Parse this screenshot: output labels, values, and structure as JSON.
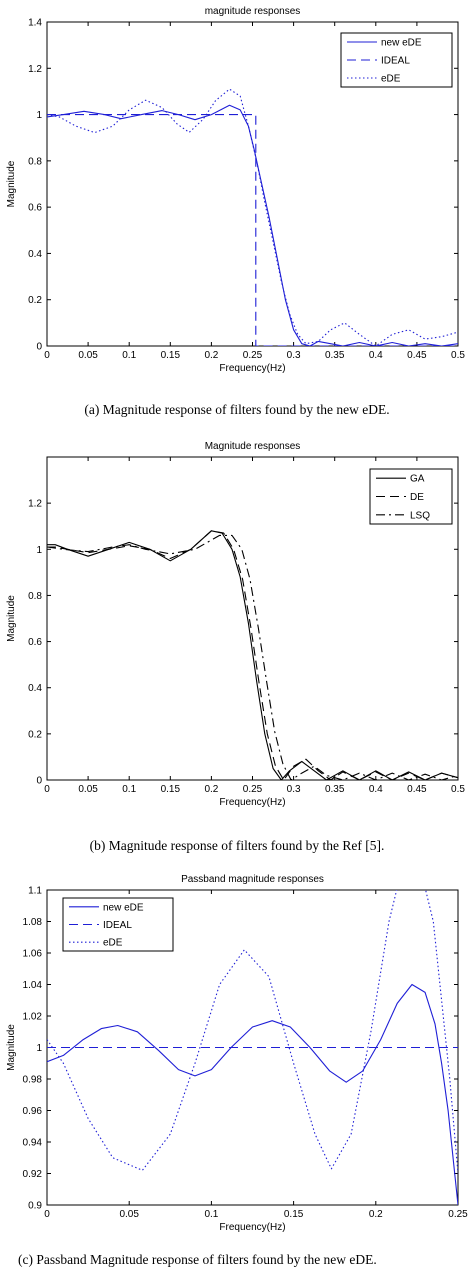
{
  "captions": {
    "a": "(a) Magnitude response of filters found by the new eDE.",
    "b": "(b) Magnitude response of filters found by the Ref [5].",
    "c": "(c) Passband Magnitude response of filters found by the new eDE."
  },
  "chart_data": [
    {
      "type": "line",
      "title": "magnitude responses",
      "xlabel": "Frequency(Hz)",
      "ylabel": "Magnitude",
      "xlim": [
        0,
        0.5
      ],
      "ylim": [
        0,
        1.4
      ],
      "xticks": [
        0,
        0.05,
        0.1,
        0.15,
        0.2,
        0.25,
        0.3,
        0.35,
        0.4,
        0.45,
        0.5
      ],
      "xtick_labels": [
        "0",
        "0.05",
        "0.1",
        "0.15",
        "0.2",
        "0.25",
        "0.3",
        "0.35",
        "0.4",
        "0.45",
        "0.5"
      ],
      "yticks": [
        0,
        0.2,
        0.4,
        0.6,
        0.8,
        1,
        1.2,
        1.4
      ],
      "ytick_labels": [
        "0",
        "0.2",
        "0.4",
        "0.6",
        "0.8",
        "1",
        "1.2",
        "1.4"
      ],
      "grid": false,
      "legend": "top-right",
      "series": [
        {
          "name": "new eDE",
          "style": "solid",
          "color": "#1f1fd6",
          "x": [
            0,
            0.02,
            0.045,
            0.07,
            0.09,
            0.115,
            0.14,
            0.16,
            0.18,
            0.2,
            0.222,
            0.235,
            0.245,
            0.252,
            0.26,
            0.27,
            0.28,
            0.29,
            0.3,
            0.31,
            0.32,
            0.33,
            0.345,
            0.36,
            0.38,
            0.4,
            0.42,
            0.44,
            0.46,
            0.48,
            0.5
          ],
          "y": [
            0.99,
            1.0,
            1.014,
            1.0,
            0.982,
            1.0,
            1.017,
            1.0,
            0.978,
            1.0,
            1.04,
            1.02,
            0.95,
            0.85,
            0.72,
            0.56,
            0.38,
            0.2,
            0.07,
            0.01,
            0.0,
            0.02,
            0.01,
            0.0,
            0.015,
            0.0,
            0.015,
            0.0,
            0.01,
            0.0,
            0.01
          ]
        },
        {
          "name": "IDEAL",
          "style": "dashed",
          "color": "#1f1fd6",
          "x": [
            0,
            0.254,
            0.254,
            0.5
          ],
          "y": [
            1.0,
            1.0,
            0.0,
            0.0
          ]
        },
        {
          "name": "eDE",
          "style": "dotted",
          "color": "#1f1fd6",
          "x": [
            0,
            0.015,
            0.035,
            0.058,
            0.08,
            0.1,
            0.12,
            0.14,
            0.158,
            0.173,
            0.19,
            0.205,
            0.222,
            0.235,
            0.245,
            0.255,
            0.265,
            0.275,
            0.285,
            0.295,
            0.305,
            0.315,
            0.33,
            0.345,
            0.362,
            0.38,
            0.4,
            0.42,
            0.44,
            0.46,
            0.48,
            0.5
          ],
          "y": [
            1.0,
            0.99,
            0.95,
            0.922,
            0.95,
            1.02,
            1.062,
            1.03,
            0.96,
            0.923,
            0.98,
            1.06,
            1.11,
            1.08,
            0.95,
            0.8,
            0.62,
            0.45,
            0.28,
            0.14,
            0.05,
            0.01,
            0.02,
            0.07,
            0.1,
            0.05,
            0.0,
            0.05,
            0.07,
            0.03,
            0.04,
            0.06
          ]
        }
      ]
    },
    {
      "type": "line",
      "title": "Magnitude responses",
      "xlabel": "Frequency(Hz)",
      "ylabel": "Magnitude",
      "xlim": [
        0,
        0.5
      ],
      "ylim": [
        0,
        1.4
      ],
      "xticks": [
        0,
        0.05,
        0.1,
        0.15,
        0.2,
        0.25,
        0.3,
        0.35,
        0.4,
        0.45,
        0.5
      ],
      "xtick_labels": [
        "0",
        "0.05",
        "0.1",
        "0.15",
        "0.2",
        "0.25",
        "0.3",
        "0.35",
        "0.4",
        "0.45",
        "0.5"
      ],
      "yticks": [
        0,
        0.2,
        0.4,
        0.6,
        0.8,
        1,
        1.2
      ],
      "ytick_labels": [
        "0",
        "0.2",
        "0.4",
        "0.6",
        "0.8",
        "1",
        "1.2"
      ],
      "grid": false,
      "legend": "top-right",
      "series": [
        {
          "name": "GA",
          "style": "solid",
          "color": "#000000",
          "x": [
            0,
            0.01,
            0.025,
            0.05,
            0.075,
            0.1,
            0.125,
            0.15,
            0.175,
            0.2,
            0.213,
            0.225,
            0.235,
            0.245,
            0.255,
            0.265,
            0.275,
            0.285,
            0.295,
            0.31,
            0.325,
            0.34,
            0.36,
            0.38,
            0.4,
            0.42,
            0.44,
            0.46,
            0.48,
            0.5
          ],
          "y": [
            1.02,
            1.02,
            1.0,
            0.97,
            1.0,
            1.03,
            1.0,
            0.95,
            1.0,
            1.08,
            1.07,
            1.0,
            0.88,
            0.68,
            0.43,
            0.2,
            0.05,
            0.0,
            0.04,
            0.08,
            0.04,
            0.0,
            0.04,
            0.0,
            0.04,
            0.0,
            0.035,
            0.0,
            0.03,
            0.01
          ]
        },
        {
          "name": "DE",
          "style": "dashed",
          "color": "#000000",
          "x": [
            0,
            0.01,
            0.025,
            0.05,
            0.075,
            0.1,
            0.125,
            0.15,
            0.175,
            0.2,
            0.215,
            0.227,
            0.238,
            0.248,
            0.258,
            0.268,
            0.278,
            0.288,
            0.3,
            0.315,
            0.33,
            0.345,
            0.36,
            0.38,
            0.4,
            0.42,
            0.44,
            0.46,
            0.48,
            0.5
          ],
          "y": [
            1.01,
            1.01,
            1.0,
            0.985,
            1.0,
            1.015,
            1.0,
            0.96,
            1.0,
            1.08,
            1.07,
            1.0,
            0.87,
            0.66,
            0.42,
            0.2,
            0.06,
            0.0,
            0.06,
            0.09,
            0.04,
            0.0,
            0.035,
            0.0,
            0.035,
            0.0,
            0.03,
            0.0,
            0.03,
            0.01
          ]
        },
        {
          "name": "LSQ",
          "style": "dashdot",
          "color": "#000000",
          "x": [
            0,
            0.02,
            0.05,
            0.08,
            0.1,
            0.12,
            0.15,
            0.18,
            0.21,
            0.225,
            0.237,
            0.247,
            0.257,
            0.267,
            0.277,
            0.287,
            0.297,
            0.31,
            0.325,
            0.34,
            0.36,
            0.38,
            0.4,
            0.42,
            0.44,
            0.46,
            0.48,
            0.5
          ],
          "y": [
            1.01,
            1.0,
            0.99,
            1.01,
            1.02,
            1.0,
            0.98,
            1.0,
            1.06,
            1.06,
            1.0,
            0.87,
            0.66,
            0.43,
            0.21,
            0.07,
            0.0,
            0.03,
            0.06,
            0.02,
            0.0,
            0.03,
            0.0,
            0.03,
            0.0,
            0.025,
            0.0,
            0.02
          ]
        }
      ]
    },
    {
      "type": "line",
      "title": "Passband magnitude responses",
      "xlabel": "Frequency(Hz)",
      "ylabel": "Magnitude",
      "xlim": [
        0,
        0.25
      ],
      "ylim": [
        0.9,
        1.1
      ],
      "xticks": [
        0,
        0.05,
        0.1,
        0.15,
        0.2,
        0.25
      ],
      "xtick_labels": [
        "0",
        "0.05",
        "0.1",
        "0.15",
        "0.2",
        "0.25"
      ],
      "yticks": [
        0.9,
        0.92,
        0.94,
        0.96,
        0.98,
        1,
        1.02,
        1.04,
        1.06,
        1.08,
        1.1
      ],
      "ytick_labels": [
        "0.9",
        "0.92",
        "0.94",
        "0.96",
        "0.98",
        "1",
        "1.02",
        "1.04",
        "1.06",
        "1.08",
        "1.1"
      ],
      "grid": false,
      "legend": "top-left",
      "series": [
        {
          "name": "new eDE",
          "style": "solid",
          "color": "#1f1fd6",
          "x": [
            0,
            0.01,
            0.022,
            0.033,
            0.043,
            0.055,
            0.068,
            0.08,
            0.09,
            0.1,
            0.112,
            0.125,
            0.137,
            0.148,
            0.16,
            0.172,
            0.182,
            0.192,
            0.203,
            0.213,
            0.222,
            0.23,
            0.236,
            0.24,
            0.244,
            0.248,
            0.25
          ],
          "y": [
            0.991,
            0.995,
            1.005,
            1.012,
            1.014,
            1.01,
            0.998,
            0.986,
            0.982,
            0.986,
            1.0,
            1.013,
            1.017,
            1.013,
            1.0,
            0.985,
            0.978,
            0.985,
            1.005,
            1.028,
            1.04,
            1.035,
            1.015,
            0.99,
            0.96,
            0.92,
            0.9
          ]
        },
        {
          "name": "IDEAL",
          "style": "dashed",
          "color": "#1f1fd6",
          "x": [
            0,
            0.25
          ],
          "y": [
            1.0,
            1.0
          ]
        },
        {
          "name": "eDE",
          "style": "dotted",
          "color": "#1f1fd6",
          "x": [
            0,
            0.01,
            0.025,
            0.04,
            0.058,
            0.075,
            0.09,
            0.105,
            0.12,
            0.135,
            0.15,
            0.163,
            0.173,
            0.185,
            0.197,
            0.208,
            0.215,
            0.222,
            0.228,
            0.235,
            0.24,
            0.245,
            0.25
          ],
          "y": [
            1.005,
            0.99,
            0.955,
            0.93,
            0.922,
            0.945,
            0.99,
            1.04,
            1.062,
            1.045,
            0.99,
            0.945,
            0.923,
            0.945,
            1.01,
            1.08,
            1.11,
            1.12,
            1.11,
            1.08,
            1.03,
            0.98,
            0.92
          ]
        }
      ]
    }
  ]
}
